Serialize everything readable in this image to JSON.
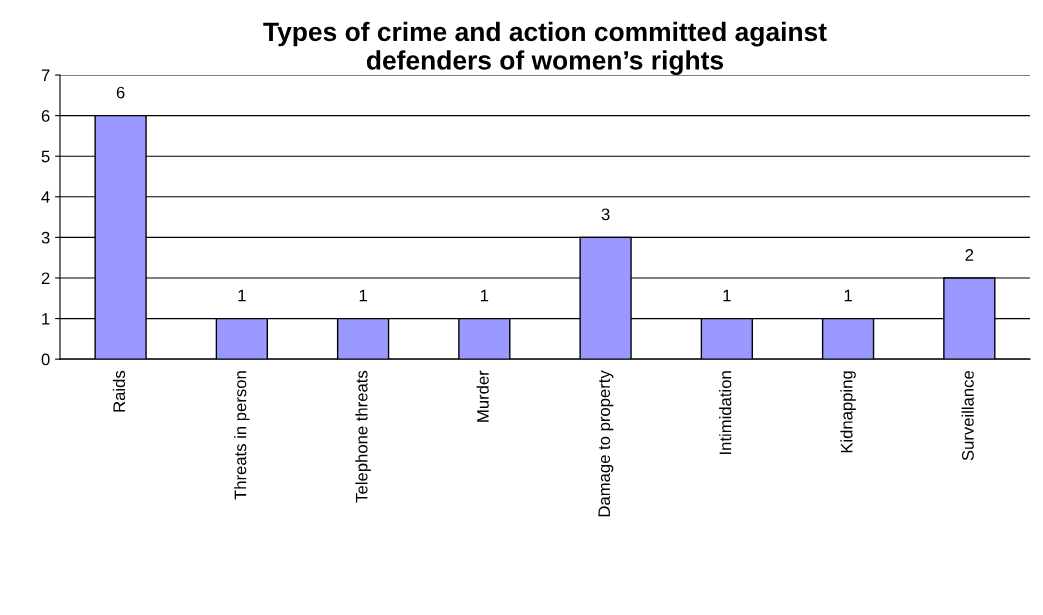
{
  "chart_data": {
    "type": "bar",
    "title": "Types of crime and action committed against\ndefenders of women’s rights",
    "categories": [
      "Raids",
      "Threats in person",
      "Telephone threats",
      "Murder",
      "Damage to property",
      "Intimidation",
      "Kidnapping",
      "Surveillance"
    ],
    "values": [
      6,
      1,
      1,
      1,
      3,
      1,
      1,
      2
    ],
    "color": "#9999ff",
    "ylim": [
      0,
      7
    ],
    "yticks": [
      0,
      1,
      2,
      3,
      4,
      5,
      6,
      7
    ],
    "grid": "y",
    "data_labels": true,
    "legend": false
  }
}
